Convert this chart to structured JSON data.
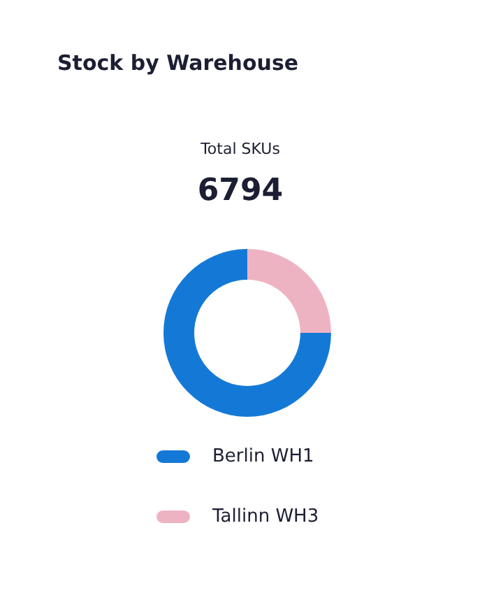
{
  "chart_data": {
    "type": "donut",
    "title": "Stock by Warehouse",
    "subtitle": "Total SKUs",
    "annotations": [
      "6794"
    ],
    "categories": [
      "Berlin WH1",
      "Tallinn WH3"
    ],
    "values": [
      75,
      25
    ],
    "colors": [
      "#1479d6",
      "#eeb3c2"
    ],
    "legend": "bottom"
  }
}
